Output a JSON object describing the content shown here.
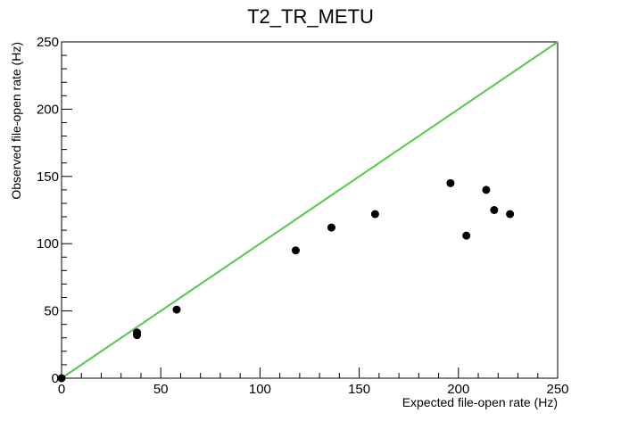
{
  "chart_data": {
    "type": "scatter",
    "title": "T2_TR_METU",
    "xlabel": "Expected file-open rate (Hz)",
    "ylabel": "Observed file-open rate (Hz)",
    "xlim": [
      0,
      250
    ],
    "ylim": [
      0,
      250
    ],
    "x_ticks": [
      0,
      50,
      100,
      150,
      200,
      250
    ],
    "y_ticks": [
      0,
      50,
      100,
      150,
      200,
      250
    ],
    "grid": false,
    "reference_line": {
      "from": [
        0,
        0
      ],
      "to": [
        250,
        250
      ],
      "color": "#55c84a"
    },
    "marker_color": "#000000",
    "points": [
      {
        "x": 0,
        "y": 0
      },
      {
        "x": 38,
        "y": 32
      },
      {
        "x": 38,
        "y": 34
      },
      {
        "x": 58,
        "y": 51
      },
      {
        "x": 118,
        "y": 95
      },
      {
        "x": 136,
        "y": 112
      },
      {
        "x": 158,
        "y": 122
      },
      {
        "x": 196,
        "y": 145
      },
      {
        "x": 204,
        "y": 106
      },
      {
        "x": 214,
        "y": 140
      },
      {
        "x": 218,
        "y": 125
      },
      {
        "x": 226,
        "y": 122
      }
    ]
  }
}
